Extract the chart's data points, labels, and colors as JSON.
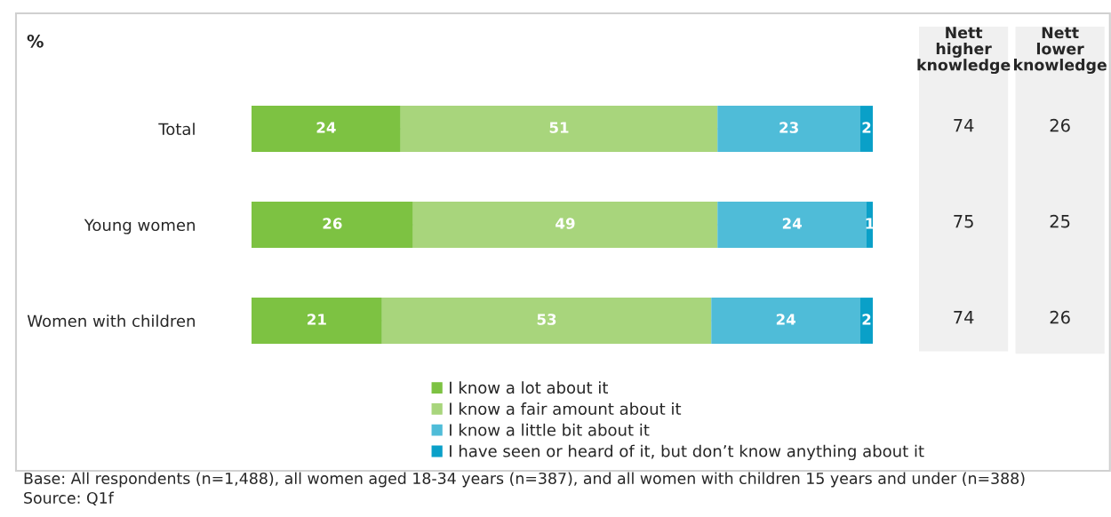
{
  "chart_data": [
    {
      "type": "bar",
      "orientation": "horizontal",
      "stacked": true,
      "categories": [
        "Total",
        "Young women",
        "Women with children"
      ],
      "series": [
        {
          "name": "I know a lot about it",
          "color": "#7dc242",
          "values": [
            24,
            26,
            21
          ]
        },
        {
          "name": "I know a fair amount about it",
          "color": "#a8d57c",
          "values": [
            51,
            49,
            53
          ]
        },
        {
          "name": "I know a little bit about it",
          "color": "#4fbcd8",
          "values": [
            23,
            24,
            24
          ]
        },
        {
          "name": "I have seen or heard of it, but don’t know anything about it",
          "color": "#0aa0c8",
          "values": [
            2,
            1,
            2
          ]
        }
      ],
      "xlim": [
        0,
        100
      ],
      "tick_labels": "y",
      "data_labels": true,
      "legend": "bottom",
      "annotations": [
        "%",
        "Base: All respondents (n=1,488), all women aged 18-34 years (n=387), and all women with children 15 years and under (n=388)",
        "Source: Q1f"
      ]
    },
    {
      "type": "other",
      "annotations": [
        "Nett higher knowledge",
        "Nett lower knowledge",
        "74",
        "26",
        "75",
        "25",
        "74",
        "26"
      ]
    }
  ]
}
